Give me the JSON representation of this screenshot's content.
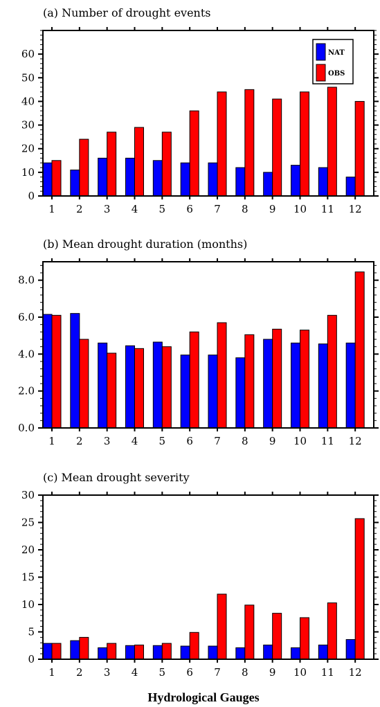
{
  "chart_data": [
    {
      "type": "bar",
      "title": "(a) Number of drought events",
      "categories": [
        "1",
        "2",
        "3",
        "4",
        "5",
        "6",
        "7",
        "8",
        "9",
        "10",
        "11",
        "12"
      ],
      "ylim": [
        0,
        70
      ],
      "yticks": [
        0,
        10,
        20,
        30,
        40,
        50,
        60
      ],
      "ytick_labels": [
        "0",
        "10",
        "20",
        "30",
        "40",
        "50",
        "60"
      ],
      "legend": {
        "placement": "top-right",
        "entries": [
          "NAT",
          "OBS"
        ]
      },
      "series": [
        {
          "name": "NAT",
          "color": "#0000ff",
          "values": [
            14,
            11,
            16,
            16,
            15,
            14,
            14,
            12,
            10,
            13,
            12,
            8
          ]
        },
        {
          "name": "OBS",
          "color": "#ff0000",
          "values": [
            15,
            24,
            27,
            29,
            27,
            36,
            44,
            45,
            41,
            44,
            46,
            40
          ]
        }
      ]
    },
    {
      "type": "bar",
      "title": "(b) Mean drought duration (months)",
      "categories": [
        "1",
        "2",
        "3",
        "4",
        "5",
        "6",
        "7",
        "8",
        "9",
        "10",
        "11",
        "12"
      ],
      "ylim": [
        0,
        9
      ],
      "yticks": [
        0,
        2,
        4,
        6,
        8
      ],
      "ytick_labels": [
        "0.0",
        "2.0",
        "4.0",
        "6.0",
        "8.0"
      ],
      "series": [
        {
          "name": "NAT",
          "color": "#0000ff",
          "values": [
            6.15,
            6.2,
            4.6,
            4.45,
            4.65,
            3.95,
            3.95,
            3.8,
            4.8,
            4.6,
            4.55,
            4.6
          ]
        },
        {
          "name": "OBS",
          "color": "#ff0000",
          "values": [
            6.1,
            4.8,
            4.05,
            4.3,
            4.4,
            5.2,
            5.7,
            5.05,
            5.35,
            5.3,
            6.1,
            8.45
          ]
        }
      ]
    },
    {
      "type": "bar",
      "title": "(c) Mean drought severity",
      "categories": [
        "1",
        "2",
        "3",
        "4",
        "5",
        "6",
        "7",
        "8",
        "9",
        "10",
        "11",
        "12"
      ],
      "ylim": [
        0,
        30
      ],
      "yticks": [
        0,
        5,
        10,
        15,
        20,
        25,
        30
      ],
      "ytick_labels": [
        "0",
        "5",
        "10",
        "15",
        "20",
        "25",
        "30"
      ],
      "series": [
        {
          "name": "NAT",
          "color": "#0000ff",
          "values": [
            2.9,
            3.4,
            2.1,
            2.5,
            2.5,
            2.4,
            2.4,
            2.1,
            2.6,
            2.1,
            2.6,
            3.6
          ]
        },
        {
          "name": "OBS",
          "color": "#ff0000",
          "values": [
            2.9,
            4.0,
            2.9,
            2.6,
            2.9,
            4.9,
            11.9,
            9.9,
            8.4,
            7.6,
            10.3,
            25.7
          ]
        }
      ]
    }
  ],
  "xaxis_title": "Hydrological Gauges"
}
